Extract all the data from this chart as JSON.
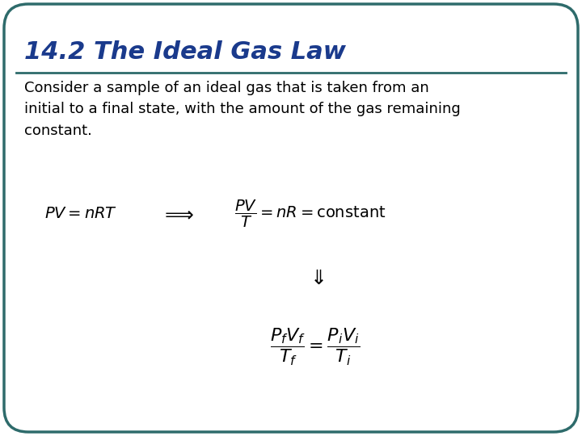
{
  "title": "14.2 The Ideal Gas Law",
  "title_color": "#1A3A8C",
  "title_fontsize": 22,
  "body_text": "Consider a sample of an ideal gas that is taken from an\ninitial to a final state, with the amount of the gas remaining\nconstant.",
  "body_fontsize": 13,
  "eq1": "$PV = nRT$",
  "arrow": "$\\Longrightarrow$",
  "eq2": "$\\dfrac{PV}{T} = nR = \\mathrm{constant}$",
  "down_arrow": "$\\Downarrow$",
  "eq3": "$\\dfrac{P_f V_f}{T_f} = \\dfrac{P_i V_i}{T_i}$",
  "bg_color": "#FFFFFF",
  "border_color": "#2E6B6B",
  "line_color": "#2E6B6B",
  "eq_fontsize": 14,
  "down_arrow_fontsize": 18
}
